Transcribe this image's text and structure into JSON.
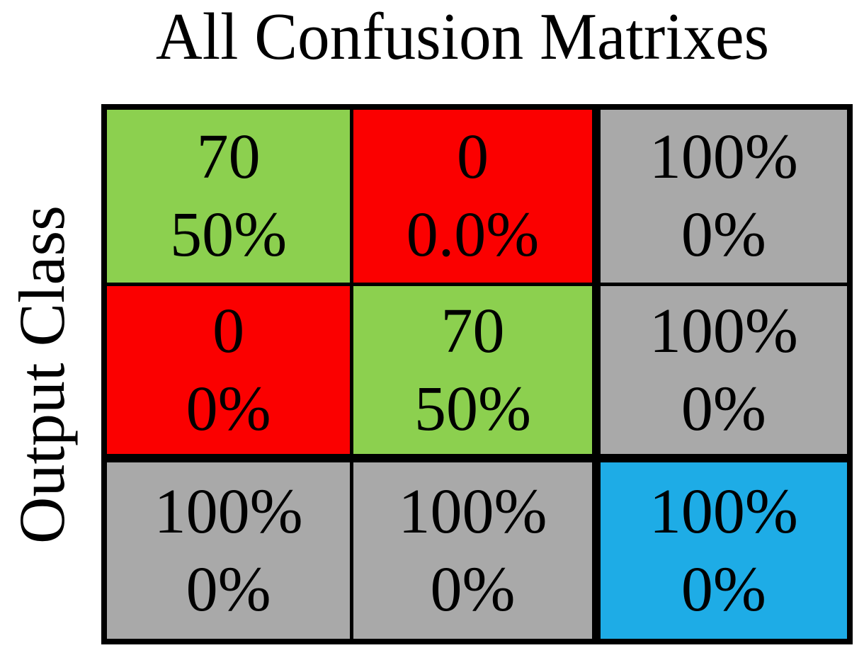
{
  "chart_data": {
    "type": "heatmap",
    "title": "All Confusion Matrixes",
    "ylabel": "Output Class",
    "grid": {
      "rows": 3,
      "cols": 3
    },
    "counts": [
      [
        70,
        0
      ],
      [
        0,
        70
      ]
    ],
    "cells": [
      [
        {
          "value": "70",
          "pct": "50%",
          "bg": "#8CD04F",
          "role": "correct"
        },
        {
          "value": "0",
          "pct": "0.0%",
          "bg": "#FB0000",
          "role": "incorrect"
        },
        {
          "value": "100%",
          "pct": "0%",
          "bg": "#A9A9A9",
          "role": "row-summary"
        }
      ],
      [
        {
          "value": "0",
          "pct": "0%",
          "bg": "#FB0000",
          "role": "incorrect"
        },
        {
          "value": "70",
          "pct": "50%",
          "bg": "#8CD04F",
          "role": "correct"
        },
        {
          "value": "100%",
          "pct": "0%",
          "bg": "#A9A9A9",
          "role": "row-summary"
        }
      ],
      [
        {
          "value": "100%",
          "pct": "0%",
          "bg": "#A9A9A9",
          "role": "col-summary"
        },
        {
          "value": "100%",
          "pct": "0%",
          "bg": "#A9A9A9",
          "role": "col-summary"
        },
        {
          "value": "100%",
          "pct": "0%",
          "bg": "#1EACE6",
          "role": "total"
        }
      ]
    ],
    "colors": {
      "correct": "#8CD04F",
      "incorrect": "#FB0000",
      "summary": "#A9A9A9",
      "total": "#1EACE6",
      "border": "#000000",
      "text": "#000000",
      "background": "#FFFFFF"
    },
    "layout": {
      "legend": false,
      "grid_lines": "black-separators"
    }
  }
}
